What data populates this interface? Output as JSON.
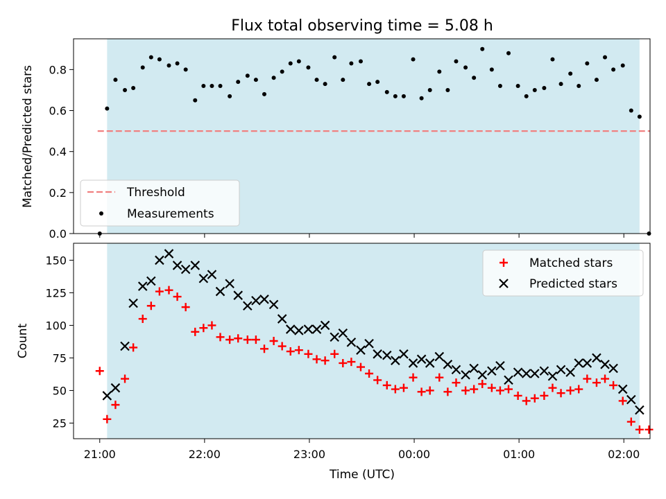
{
  "chart_data": [
    {
      "type": "scatter",
      "title": "Flux total observing time = 5.08 h",
      "xlabel": "",
      "ylabel": "Matched/Predicted stars",
      "ylim": [
        0.0,
        0.95
      ],
      "yticks": [
        "0.0",
        "0.2",
        "0.4",
        "0.6",
        "0.8"
      ],
      "xticks": [
        "21:00",
        "22:00",
        "23:00",
        "00:00",
        "01:00",
        "02:00"
      ],
      "xlim_hours": [
        20.75,
        26.25
      ],
      "shaded_interval_hours": [
        21.07,
        26.15
      ],
      "shade_color": "#add8e6",
      "threshold": {
        "name": "Threshold",
        "value": 0.5,
        "x_range": [
          20.98,
          26.25
        ],
        "color": "#f08080"
      },
      "series": [
        {
          "name": "Measurements",
          "color": "#000000",
          "x": [
            21.0,
            21.07,
            21.15,
            21.24,
            21.32,
            21.41,
            21.49,
            21.57,
            21.66,
            21.74,
            21.82,
            21.91,
            21.99,
            22.07,
            22.15,
            22.24,
            22.32,
            22.41,
            22.49,
            22.57,
            22.66,
            22.74,
            22.82,
            22.9,
            22.99,
            23.07,
            23.15,
            23.24,
            23.32,
            23.4,
            23.49,
            23.57,
            23.65,
            23.74,
            23.82,
            23.9,
            23.99,
            24.07,
            24.15,
            24.24,
            24.32,
            24.4,
            24.49,
            24.57,
            24.65,
            24.74,
            24.82,
            24.9,
            24.99,
            25.07,
            25.15,
            25.24,
            25.32,
            25.4,
            25.49,
            25.57,
            25.65,
            25.74,
            25.82,
            25.9,
            25.99,
            26.07,
            26.15,
            26.24
          ],
          "y": [
            0.0,
            0.61,
            0.75,
            0.7,
            0.71,
            0.81,
            0.86,
            0.85,
            0.82,
            0.83,
            0.8,
            0.65,
            0.72,
            0.72,
            0.72,
            0.67,
            0.74,
            0.77,
            0.75,
            0.68,
            0.76,
            0.79,
            0.83,
            0.84,
            0.81,
            0.75,
            0.73,
            0.86,
            0.75,
            0.83,
            0.84,
            0.73,
            0.74,
            0.69,
            0.67,
            0.67,
            0.85,
            0.66,
            0.7,
            0.79,
            0.7,
            0.84,
            0.81,
            0.76,
            0.9,
            0.8,
            0.72,
            0.88,
            0.72,
            0.67,
            0.7,
            0.71,
            0.85,
            0.73,
            0.78,
            0.72,
            0.83,
            0.75,
            0.86,
            0.8,
            0.82,
            0.6,
            0.57,
            0.0
          ]
        }
      ],
      "legend": {
        "placement": "lower-left",
        "entries": [
          "Threshold",
          "Measurements"
        ]
      }
    },
    {
      "type": "scatter",
      "title": "",
      "xlabel": "Time (UTC)",
      "ylabel": "Count",
      "ylim": [
        13,
        163
      ],
      "yticks": [
        "25",
        "50",
        "75",
        "100",
        "125",
        "150"
      ],
      "xticks": [
        "21:00",
        "22:00",
        "23:00",
        "00:00",
        "01:00",
        "02:00"
      ],
      "xlim_hours": [
        20.75,
        26.25
      ],
      "shaded_interval_hours": [
        21.07,
        26.15
      ],
      "shade_color": "#add8e6",
      "series": [
        {
          "name": "Matched stars",
          "color": "#ff0000",
          "marker": "+",
          "x": [
            21.0,
            21.07,
            21.15,
            21.24,
            21.32,
            21.41,
            21.49,
            21.57,
            21.66,
            21.74,
            21.82,
            21.91,
            21.99,
            22.07,
            22.15,
            22.24,
            22.32,
            22.41,
            22.49,
            22.57,
            22.66,
            22.74,
            22.82,
            22.9,
            22.99,
            23.07,
            23.15,
            23.24,
            23.32,
            23.4,
            23.49,
            23.57,
            23.65,
            23.74,
            23.82,
            23.9,
            23.99,
            24.07,
            24.15,
            24.24,
            24.32,
            24.4,
            24.49,
            24.57,
            24.65,
            24.74,
            24.82,
            24.9,
            24.99,
            25.07,
            25.15,
            25.24,
            25.32,
            25.4,
            25.49,
            25.57,
            25.65,
            25.74,
            25.82,
            25.9,
            25.99,
            26.07,
            26.15,
            26.24
          ],
          "y": [
            65,
            28,
            39,
            59,
            83,
            105,
            115,
            126,
            127,
            122,
            114,
            95,
            98,
            100,
            91,
            89,
            90,
            89,
            89,
            82,
            88,
            84,
            80,
            81,
            78,
            74,
            73,
            78,
            71,
            72,
            68,
            63,
            58,
            54,
            51,
            52,
            60,
            49,
            50,
            60,
            49,
            56,
            50,
            51,
            55,
            52,
            50,
            51,
            46,
            42,
            44,
            46,
            52,
            48,
            50,
            51,
            59,
            56,
            59,
            54,
            42,
            26,
            20,
            20
          ]
        },
        {
          "name": "Predicted stars",
          "color": "#000000",
          "marker": "x",
          "x": [
            21.07,
            21.15,
            21.24,
            21.32,
            21.41,
            21.49,
            21.57,
            21.66,
            21.74,
            21.82,
            21.91,
            21.99,
            22.07,
            22.15,
            22.24,
            22.32,
            22.41,
            22.49,
            22.57,
            22.66,
            22.74,
            22.82,
            22.9,
            22.99,
            23.07,
            23.15,
            23.24,
            23.32,
            23.4,
            23.49,
            23.57,
            23.65,
            23.74,
            23.82,
            23.9,
            23.99,
            24.07,
            24.15,
            24.24,
            24.32,
            24.4,
            24.49,
            24.57,
            24.65,
            24.74,
            24.82,
            24.9,
            24.99,
            25.07,
            25.15,
            25.24,
            25.32,
            25.4,
            25.49,
            25.57,
            25.65,
            25.74,
            25.82,
            25.9,
            25.99,
            26.07,
            26.15
          ],
          "y": [
            46,
            52,
            84,
            117,
            130,
            134,
            150,
            155,
            146,
            143,
            146,
            136,
            139,
            126,
            132,
            123,
            115,
            119,
            120,
            116,
            105,
            97,
            96,
            97,
            97,
            100,
            91,
            94,
            87,
            81,
            86,
            78,
            77,
            73,
            78,
            71,
            74,
            71,
            76,
            70,
            66,
            62,
            67,
            62,
            65,
            69,
            58,
            64,
            63,
            63,
            65,
            61,
            66,
            64,
            71,
            71,
            75,
            70,
            67,
            51,
            43,
            35
          ]
        }
      ],
      "legend": {
        "placement": "upper-right",
        "entries": [
          "Matched stars",
          "Predicted stars"
        ]
      }
    }
  ]
}
